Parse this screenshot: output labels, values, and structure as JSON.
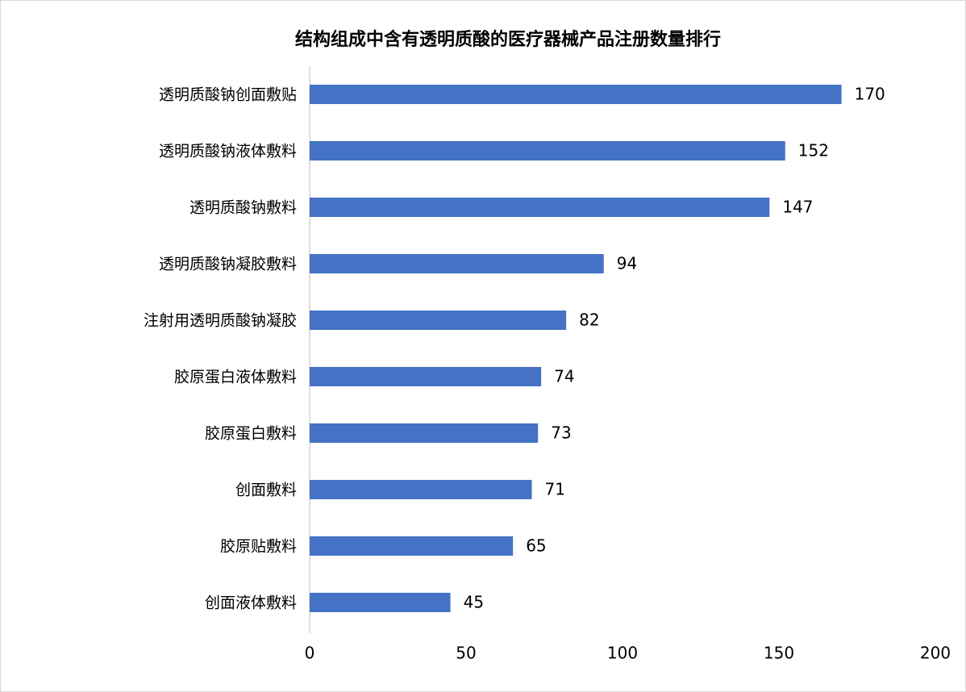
{
  "chart_data": {
    "type": "bar",
    "orientation": "horizontal",
    "title": "结构组成中含有透明质酸的医疗器械产品注册数量排行",
    "categories": [
      "透明质酸钠创面敷贴",
      "透明质酸钠液体敷料",
      "透明质酸钠敷料",
      "透明质酸钠凝胶敷料",
      "注射用透明质酸钠凝胶",
      "胶原蛋白液体敷料",
      "胶原蛋白敷料",
      "创面敷料",
      "胶原贴敷料",
      "创面液体敷料"
    ],
    "values": [
      170,
      152,
      147,
      94,
      82,
      74,
      73,
      71,
      65,
      45
    ],
    "color": "#4472c4",
    "xlim": [
      0,
      200
    ],
    "xticks": [
      0,
      50,
      100,
      150,
      200
    ],
    "grid": false
  }
}
